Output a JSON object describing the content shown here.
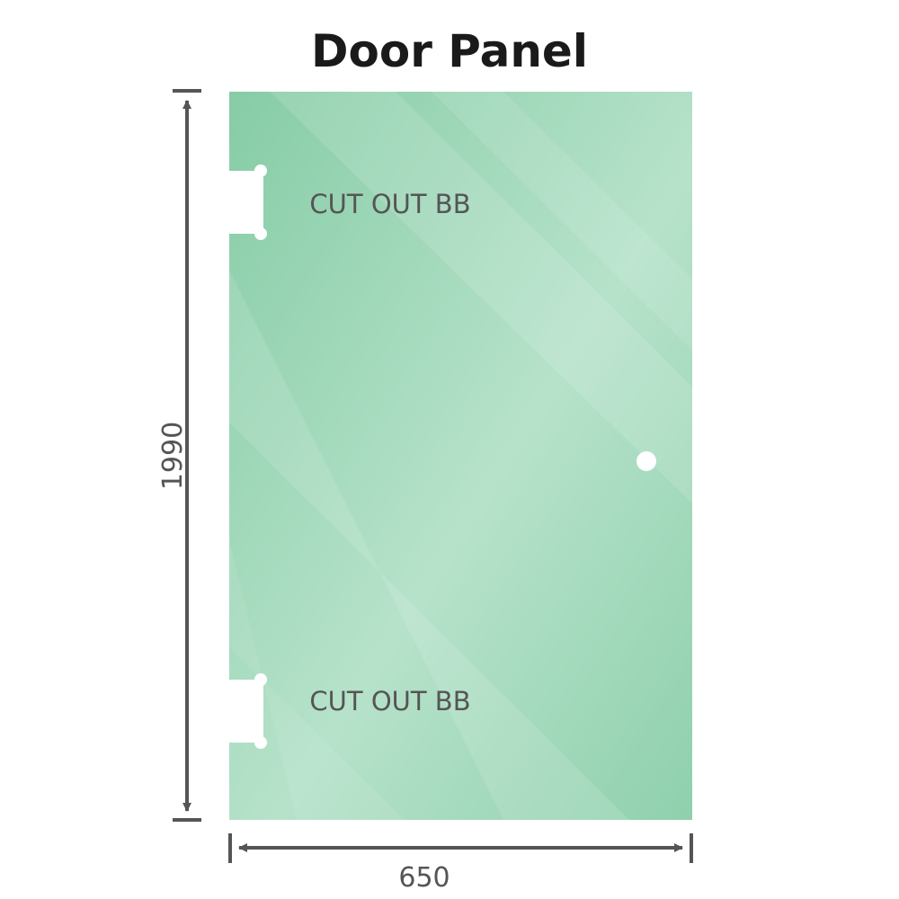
{
  "title": "Door Panel",
  "panel": {
    "glass_color": "#8fd0ad",
    "cutouts": [
      {
        "label": "CUT OUT BB"
      },
      {
        "label": "CUT OUT BB"
      }
    ],
    "handle_hole": true
  },
  "dimensions": {
    "height": "1990",
    "width": "650",
    "line_color": "#555555"
  }
}
